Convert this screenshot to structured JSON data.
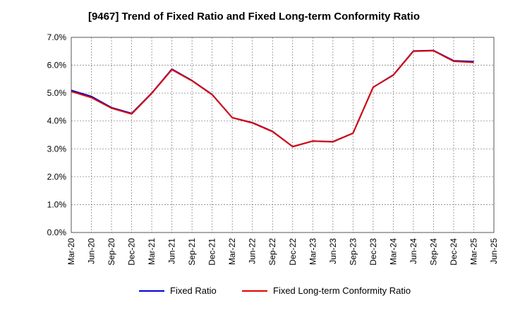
{
  "chart_data": {
    "type": "line",
    "title": "[9467]  Trend of Fixed Ratio and Fixed Long-term Conformity Ratio",
    "xlabel": "",
    "ylabel": "",
    "ylim": [
      0,
      7
    ],
    "y_ticks": [
      "0.0%",
      "1.0%",
      "2.0%",
      "3.0%",
      "4.0%",
      "5.0%",
      "6.0%",
      "7.0%"
    ],
    "categories": [
      "Mar-20",
      "Jun-20",
      "Sep-20",
      "Dec-20",
      "Mar-21",
      "Jun-21",
      "Sep-21",
      "Dec-21",
      "Mar-22",
      "Jun-22",
      "Sep-22",
      "Dec-22",
      "Mar-23",
      "Jun-23",
      "Sep-23",
      "Dec-23",
      "Mar-24",
      "Jun-24",
      "Sep-24",
      "Dec-24",
      "Mar-25",
      "Jun-25"
    ],
    "grid": true,
    "legend_position": "bottom",
    "series": [
      {
        "name": "Fixed Ratio",
        "color": "#0000cc",
        "values": [
          5.1,
          4.88,
          4.48,
          4.27,
          5.0,
          5.86,
          5.45,
          4.95,
          4.12,
          3.94,
          3.63,
          3.08,
          3.28,
          3.26,
          3.56,
          5.21,
          5.65,
          6.51,
          6.53,
          6.16,
          6.13,
          null
        ]
      },
      {
        "name": "Fixed Long-term Conformity Ratio",
        "color": "#dd0000",
        "values": [
          5.06,
          4.84,
          4.46,
          4.25,
          4.99,
          5.84,
          5.44,
          4.94,
          4.12,
          3.93,
          3.62,
          3.08,
          3.28,
          3.25,
          3.56,
          5.21,
          5.64,
          6.5,
          6.52,
          6.14,
          6.1,
          null
        ]
      }
    ]
  }
}
